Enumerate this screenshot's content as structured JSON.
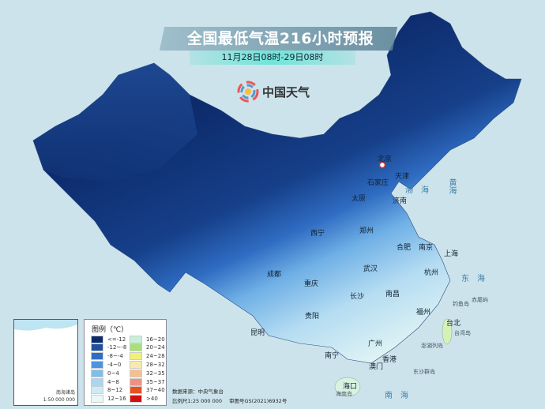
{
  "header": {
    "title": "全国最低气温216小时预报",
    "subtitle": "11月28日08时-29日08时"
  },
  "brand": {
    "name": "中国天气"
  },
  "colors": {
    "background": "#cde3ec",
    "coldest": "#0d2a6b",
    "warmest": "#e02010"
  },
  "cities": [
    {
      "name": "北京"
    },
    {
      "name": "天津"
    },
    {
      "name": "石家庄"
    },
    {
      "name": "太原"
    },
    {
      "name": "济南"
    },
    {
      "name": "郑州"
    },
    {
      "name": "西宁"
    },
    {
      "name": "合肥"
    },
    {
      "name": "南京"
    },
    {
      "name": "上海"
    },
    {
      "name": "武汉"
    },
    {
      "name": "杭州"
    },
    {
      "name": "成都"
    },
    {
      "name": "重庆"
    },
    {
      "name": "长沙"
    },
    {
      "name": "南昌"
    },
    {
      "name": "贵阳"
    },
    {
      "name": "福州"
    },
    {
      "name": "台北"
    },
    {
      "name": "昆明"
    },
    {
      "name": "广州"
    },
    {
      "name": "南宁"
    },
    {
      "name": "香港"
    },
    {
      "name": "澳门"
    },
    {
      "name": "海口"
    }
  ],
  "seas": [
    "渤海",
    "黄海",
    "东海",
    "南海"
  ],
  "islands": [
    "台湾岛",
    "钓鱼岛",
    "赤尾屿",
    "澎湖列岛",
    "东沙群岛",
    "海南岛"
  ],
  "inset": {
    "title": "南海诸岛",
    "scale": "1:50 000 000"
  },
  "legend": {
    "title": "图例（℃）",
    "items": [
      {
        "label": "<=-12",
        "color": "#0d2a6b"
      },
      {
        "label": "-12~-8",
        "color": "#1f4f9e"
      },
      {
        "label": "-8~-4",
        "color": "#2f6cc2"
      },
      {
        "label": "-4~0",
        "color": "#4f93de"
      },
      {
        "label": "0~4",
        "color": "#7fbdea"
      },
      {
        "label": "4~8",
        "color": "#aad6f2"
      },
      {
        "label": "8~12",
        "color": "#cdebf7"
      },
      {
        "label": "12~16",
        "color": "#eaf7f7"
      },
      {
        "label": "16~20",
        "color": "#c8f0d8"
      },
      {
        "label": "20~24",
        "color": "#a8e07a"
      },
      {
        "label": "24~28",
        "color": "#f2f07a"
      },
      {
        "label": "28~32",
        "color": "#f8e8b0"
      },
      {
        "label": "32~35",
        "color": "#f5c090"
      },
      {
        "label": "35~37",
        "color": "#f09080"
      },
      {
        "label": "37~40",
        "color": "#e85020"
      },
      {
        "label": ">40",
        "color": "#d01010"
      }
    ]
  },
  "footer": {
    "source": "数据来源：中央气象台",
    "scale": "比例尺1:25 000 000",
    "approval": "审图号GS(2021)6932号"
  }
}
